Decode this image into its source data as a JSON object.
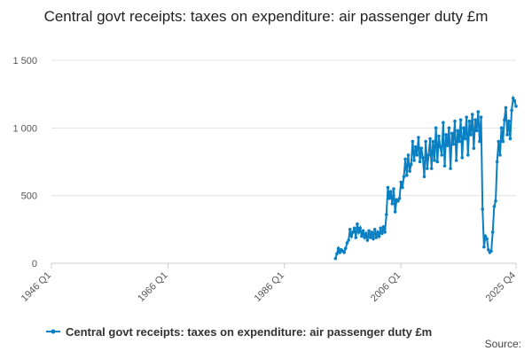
{
  "chart_data": {
    "type": "line",
    "title": "Central govt receipts: taxes on expenditure: air passenger duty £m",
    "source": "Source:",
    "xlim": [
      "1946 Q1",
      "2025 Q4"
    ],
    "xticks": [
      "1946 Q1",
      "1966 Q1",
      "1986 Q1",
      "2006 Q1",
      "2025 Q4"
    ],
    "ylim": [
      0,
      1500
    ],
    "yticks": [
      0,
      500,
      {
        "value": 1000,
        "label": "1 000"
      },
      {
        "value": 1500,
        "label": "1 500"
      }
    ],
    "grid": true,
    "legend": "bottom",
    "x": [
      "1994 Q4",
      "1995 Q1",
      "1995 Q2",
      "1995 Q3",
      "1995 Q4",
      "1996 Q1",
      "1996 Q2",
      "1996 Q3",
      "1996 Q4",
      "1997 Q1",
      "1997 Q2",
      "1997 Q3",
      "1997 Q4",
      "1998 Q1",
      "1998 Q2",
      "1998 Q3",
      "1998 Q4",
      "1999 Q1",
      "1999 Q2",
      "1999 Q3",
      "1999 Q4",
      "2000 Q1",
      "2000 Q2",
      "2000 Q3",
      "2000 Q4",
      "2001 Q1",
      "2001 Q2",
      "2001 Q3",
      "2001 Q4",
      "2002 Q1",
      "2002 Q2",
      "2002 Q3",
      "2002 Q4",
      "2003 Q1",
      "2003 Q2",
      "2003 Q3",
      "2003 Q4",
      "2004 Q1",
      "2004 Q2",
      "2004 Q3",
      "2004 Q4",
      "2005 Q1",
      "2005 Q2",
      "2005 Q3",
      "2005 Q4",
      "2006 Q1",
      "2006 Q2",
      "2006 Q3",
      "2006 Q4",
      "2007 Q1",
      "2007 Q2",
      "2007 Q3",
      "2007 Q4",
      "2008 Q1",
      "2008 Q2",
      "2008 Q3",
      "2008 Q4",
      "2009 Q1",
      "2009 Q2",
      "2009 Q3",
      "2009 Q4",
      "2010 Q1",
      "2010 Q2",
      "2010 Q3",
      "2010 Q4",
      "2011 Q1",
      "2011 Q2",
      "2011 Q3",
      "2011 Q4",
      "2012 Q1",
      "2012 Q2",
      "2012 Q3",
      "2012 Q4",
      "2013 Q1",
      "2013 Q2",
      "2013 Q3",
      "2013 Q4",
      "2014 Q1",
      "2014 Q2",
      "2014 Q3",
      "2014 Q4",
      "2015 Q1",
      "2015 Q2",
      "2015 Q3",
      "2015 Q4",
      "2016 Q1",
      "2016 Q2",
      "2016 Q3",
      "2016 Q4",
      "2017 Q1",
      "2017 Q2",
      "2017 Q3",
      "2017 Q4",
      "2018 Q1",
      "2018 Q2",
      "2018 Q3",
      "2018 Q4",
      "2019 Q1",
      "2019 Q2",
      "2019 Q3",
      "2019 Q4",
      "2020 Q1",
      "2020 Q2",
      "2020 Q3",
      "2020 Q4",
      "2021 Q1",
      "2021 Q2",
      "2021 Q3",
      "2021 Q4",
      "2022 Q1",
      "2022 Q2",
      "2022 Q3",
      "2022 Q4",
      "2023 Q1",
      "2023 Q2",
      "2023 Q3",
      "2023 Q4",
      "2024 Q1",
      "2024 Q2",
      "2024 Q3",
      "2024 Q4",
      "2025 Q1",
      "2025 Q2",
      "2025 Q3",
      "2025 Q4"
    ],
    "series": [
      {
        "name": "Central govt receipts: taxes on expenditure: air passenger duty £m",
        "color": "#0a7fc2",
        "values": [
          35,
          70,
          110,
          80,
          100,
          90,
          80,
          110,
          150,
          170,
          250,
          200,
          230,
          260,
          190,
          290,
          230,
          260,
          200,
          240,
          190,
          220,
          170,
          240,
          190,
          230,
          180,
          250,
          190,
          230,
          200,
          260,
          220,
          270,
          230,
          360,
          560,
          480,
          530,
          440,
          550,
          380,
          470,
          460,
          480,
          600,
          560,
          640,
          770,
          650,
          800,
          680,
          730,
          900,
          760,
          860,
          800,
          930,
          750,
          850,
          780,
          640,
          900,
          700,
          800,
          920,
          700,
          900,
          760,
          1000,
          750,
          940,
          860,
          800,
          1040,
          720,
          950,
          870,
          1000,
          700,
          960,
          880,
          1050,
          760,
          980,
          900,
          1060,
          780,
          1000,
          920,
          1080,
          800,
          1050,
          950,
          1100,
          850,
          1060,
          980,
          1120,
          900,
          1080,
          400,
          120,
          200,
          180,
          100,
          80,
          90,
          230,
          420,
          460,
          750,
          900,
          800,
          1000,
          900,
          1060,
          1150,
          950,
          1050,
          920,
          1130,
          1220,
          1200,
          1160
        ]
      }
    ]
  }
}
